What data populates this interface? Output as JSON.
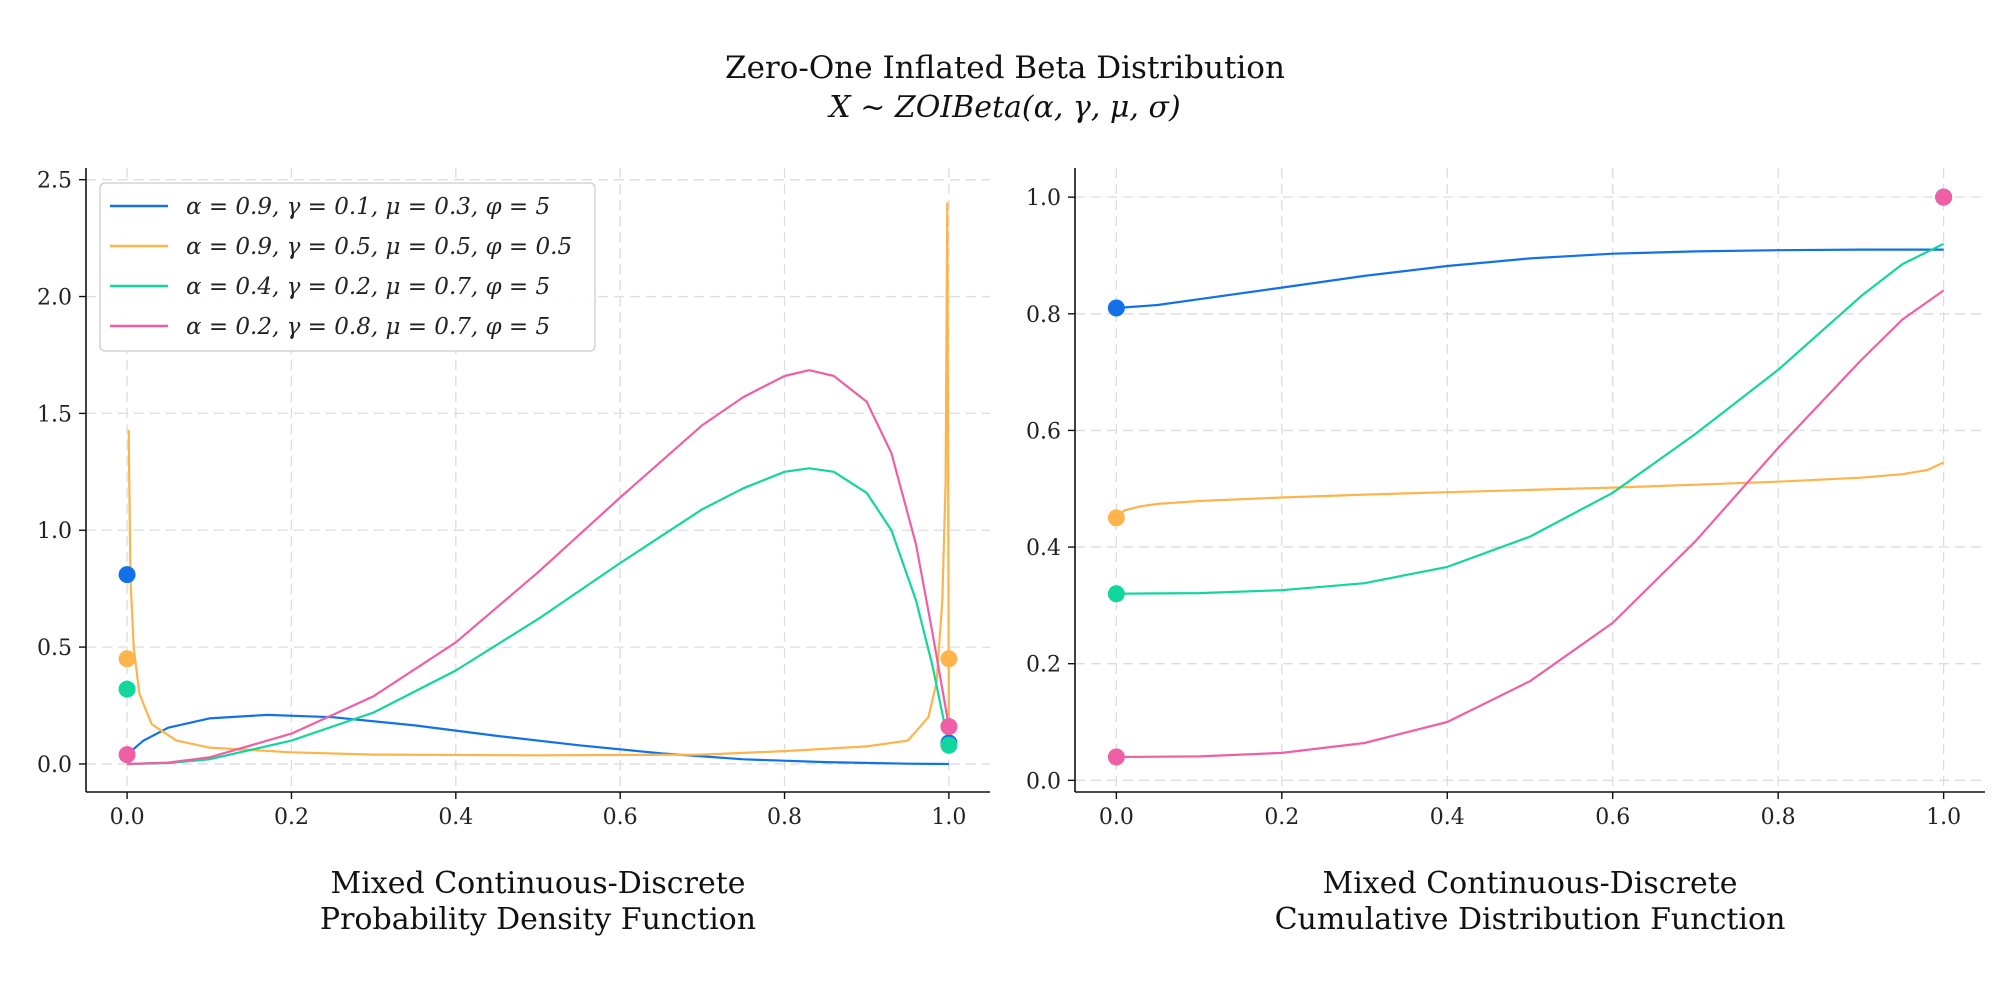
{
  "figure": {
    "title": "Zero-One Inflated Beta Distribution",
    "subtitle": "X ~ ZOIBeta(α, γ, μ, σ)"
  },
  "colors": {
    "blue": "#1271e8",
    "orange": "#fdb44c",
    "green": "#12d69c",
    "pink": "#ef5fa5"
  },
  "chart_data": [
    {
      "type": "line",
      "title": "Probability Density Function",
      "xlabel_lines": [
        "Mixed Continuous-Discrete",
        "Probability Density Function"
      ],
      "ylabel": "",
      "xlim": [
        -0.05,
        1.05
      ],
      "ylim": [
        -0.12,
        2.55
      ],
      "xticks": [
        0.0,
        0.2,
        0.4,
        0.6,
        0.8,
        1.0
      ],
      "xtick_labels": [
        "0.0",
        "0.2",
        "0.4",
        "0.6",
        "0.8",
        "1.0"
      ],
      "yticks": [
        0.0,
        0.5,
        1.0,
        1.5,
        2.0,
        2.5
      ],
      "ytick_labels": [
        "0.0",
        "0.5",
        "1.0",
        "1.5",
        "2.0",
        "2.5"
      ],
      "grid": true,
      "legend_position": "top-left",
      "series": [
        {
          "name": "α = 0.9, γ = 0.1, μ = 0.3, φ = 5",
          "color_key": "blue",
          "x": [
            0.0,
            0.02,
            0.05,
            0.1,
            0.17,
            0.25,
            0.35,
            0.45,
            0.55,
            0.65,
            0.75,
            0.85,
            0.95,
            1.0
          ],
          "y": [
            0.04,
            0.1,
            0.155,
            0.195,
            0.21,
            0.2,
            0.165,
            0.12,
            0.08,
            0.045,
            0.02,
            0.008,
            0.001,
            0.0
          ],
          "point_mass_x": [
            0.0,
            1.0
          ],
          "point_mass_y": [
            0.81,
            0.09
          ]
        },
        {
          "name": "α = 0.9, γ = 0.5, μ = 0.5, φ = 0.5",
          "color_key": "orange",
          "x": [
            0.002,
            0.004,
            0.008,
            0.015,
            0.03,
            0.06,
            0.1,
            0.2,
            0.3,
            0.5,
            0.7,
            0.8,
            0.9,
            0.95,
            0.975,
            0.985,
            0.992,
            0.996,
            0.998,
            1.0
          ],
          "y": [
            1.43,
            0.8,
            0.5,
            0.3,
            0.17,
            0.1,
            0.07,
            0.05,
            0.04,
            0.037,
            0.04,
            0.055,
            0.075,
            0.1,
            0.2,
            0.35,
            0.7,
            1.2,
            2.4,
            0.15
          ],
          "point_mass_x": [
            0.0,
            1.0
          ],
          "point_mass_y": [
            0.45,
            0.45
          ]
        },
        {
          "name": "α = 0.4, γ = 0.2, μ = 0.7, φ = 5",
          "color_key": "green",
          "x": [
            0.0,
            0.05,
            0.1,
            0.2,
            0.3,
            0.4,
            0.5,
            0.6,
            0.7,
            0.75,
            0.8,
            0.83,
            0.86,
            0.9,
            0.93,
            0.96,
            0.98,
            1.0
          ],
          "y": [
            0.0,
            0.004,
            0.02,
            0.1,
            0.22,
            0.4,
            0.62,
            0.86,
            1.09,
            1.18,
            1.25,
            1.265,
            1.25,
            1.16,
            1.0,
            0.7,
            0.42,
            0.08
          ],
          "point_mass_x": [
            0.0,
            1.0
          ],
          "point_mass_y": [
            0.32,
            0.08
          ]
        },
        {
          "name": "α = 0.2, γ = 0.8, μ = 0.7, φ = 5",
          "color_key": "pink",
          "x": [
            0.0,
            0.05,
            0.1,
            0.2,
            0.3,
            0.4,
            0.5,
            0.6,
            0.7,
            0.75,
            0.8,
            0.83,
            0.86,
            0.9,
            0.93,
            0.96,
            0.98,
            1.0
          ],
          "y": [
            0.0,
            0.006,
            0.028,
            0.13,
            0.29,
            0.52,
            0.82,
            1.14,
            1.45,
            1.57,
            1.66,
            1.685,
            1.66,
            1.55,
            1.33,
            0.94,
            0.56,
            0.16
          ],
          "point_mass_x": [
            0.0,
            1.0
          ],
          "point_mass_y": [
            0.04,
            0.16
          ]
        }
      ]
    },
    {
      "type": "line",
      "title": "Cumulative Distribution Function",
      "xlabel_lines": [
        "Mixed Continuous-Discrete",
        "Cumulative Distribution Function"
      ],
      "ylabel": "",
      "xlim": [
        -0.05,
        1.05
      ],
      "ylim": [
        -0.02,
        1.05
      ],
      "xticks": [
        0.0,
        0.2,
        0.4,
        0.6,
        0.8,
        1.0
      ],
      "xtick_labels": [
        "0.0",
        "0.2",
        "0.4",
        "0.6",
        "0.8",
        "1.0"
      ],
      "yticks": [
        0.0,
        0.2,
        0.4,
        0.6,
        0.8,
        1.0
      ],
      "ytick_labels": [
        "0.0",
        "0.2",
        "0.4",
        "0.6",
        "0.8",
        "1.0"
      ],
      "grid": true,
      "series": [
        {
          "name": "α = 0.9, γ = 0.1, μ = 0.3, φ = 5",
          "color_key": "blue",
          "x": [
            0.0,
            0.05,
            0.1,
            0.2,
            0.3,
            0.4,
            0.5,
            0.6,
            0.7,
            0.8,
            0.9,
            1.0
          ],
          "y": [
            0.81,
            0.815,
            0.825,
            0.845,
            0.865,
            0.882,
            0.895,
            0.903,
            0.907,
            0.909,
            0.91,
            0.91
          ],
          "point_mass_x": [
            0.0,
            1.0
          ],
          "point_mass_y": [
            0.81,
            1.0
          ]
        },
        {
          "name": "α = 0.9, γ = 0.5, μ = 0.5, φ = 0.5",
          "color_key": "orange",
          "x": [
            0.0,
            0.01,
            0.03,
            0.05,
            0.1,
            0.2,
            0.3,
            0.4,
            0.5,
            0.6,
            0.7,
            0.8,
            0.9,
            0.95,
            0.98,
            1.0
          ],
          "y": [
            0.45,
            0.463,
            0.47,
            0.474,
            0.479,
            0.485,
            0.49,
            0.494,
            0.498,
            0.502,
            0.507,
            0.512,
            0.519,
            0.525,
            0.532,
            0.545
          ],
          "point_mass_x": [
            0.0,
            1.0
          ],
          "point_mass_y": [
            0.45,
            1.0
          ]
        },
        {
          "name": "α = 0.4, γ = 0.2, μ = 0.7, φ = 5",
          "color_key": "green",
          "x": [
            0.0,
            0.1,
            0.2,
            0.3,
            0.4,
            0.5,
            0.6,
            0.7,
            0.8,
            0.9,
            0.95,
            1.0
          ],
          "y": [
            0.32,
            0.321,
            0.326,
            0.338,
            0.366,
            0.418,
            0.493,
            0.594,
            0.704,
            0.83,
            0.885,
            0.92
          ],
          "point_mass_x": [
            0.0,
            1.0
          ],
          "point_mass_y": [
            0.32,
            1.0
          ]
        },
        {
          "name": "α = 0.2, γ = 0.8, μ = 0.7, φ = 5",
          "color_key": "pink",
          "x": [
            0.0,
            0.1,
            0.2,
            0.3,
            0.4,
            0.5,
            0.6,
            0.7,
            0.8,
            0.9,
            0.95,
            1.0
          ],
          "y": [
            0.04,
            0.041,
            0.047,
            0.064,
            0.1,
            0.17,
            0.27,
            0.41,
            0.57,
            0.72,
            0.79,
            0.84
          ],
          "point_mass_x": [
            0.0,
            1.0
          ],
          "point_mass_y": [
            0.04,
            1.0
          ]
        }
      ]
    }
  ]
}
